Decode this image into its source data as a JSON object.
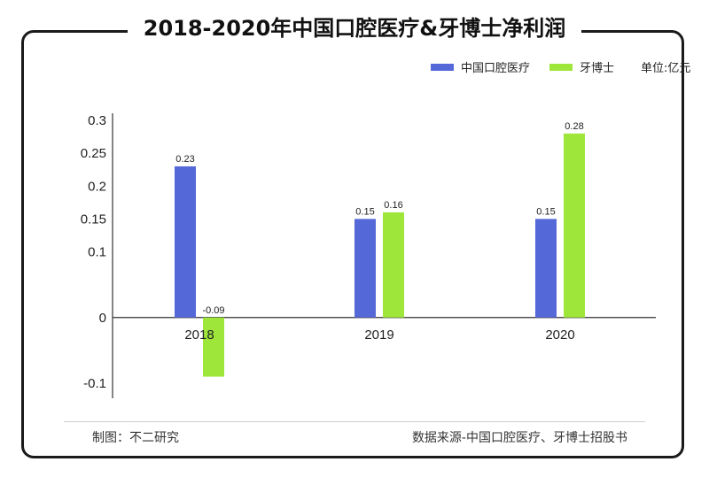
{
  "title": "2018-2020年中国口腔医疗&牙博士净利润",
  "unit": "单位:亿元",
  "maker": "制图：不二研究",
  "source": "数据来源-中国口腔医疗、牙博士招股书",
  "colors": {
    "series1": "#5568d8",
    "series2": "#9ee63a",
    "axis": "#333333"
  },
  "chart_data": {
    "type": "bar",
    "categories": [
      "2018",
      "2019",
      "2020"
    ],
    "series": [
      {
        "name": "中国口腔医疗",
        "values": [
          0.23,
          0.15,
          0.15
        ],
        "labels": [
          "0.23",
          "0.15",
          "0.15"
        ]
      },
      {
        "name": "牙博士",
        "values": [
          -0.09,
          0.16,
          0.28
        ],
        "labels": [
          "-0.09",
          "0.16",
          "0.28"
        ]
      }
    ],
    "ylim": [
      -0.1,
      0.3
    ],
    "yticks": [
      "-0.1",
      "0",
      "0.1",
      "0.15",
      "0.2",
      "0.25",
      "0.3"
    ],
    "ytick_values": [
      -0.1,
      0,
      0.1,
      0.15,
      0.2,
      0.25,
      0.3
    ],
    "grid": false,
    "legend": "top-right"
  }
}
